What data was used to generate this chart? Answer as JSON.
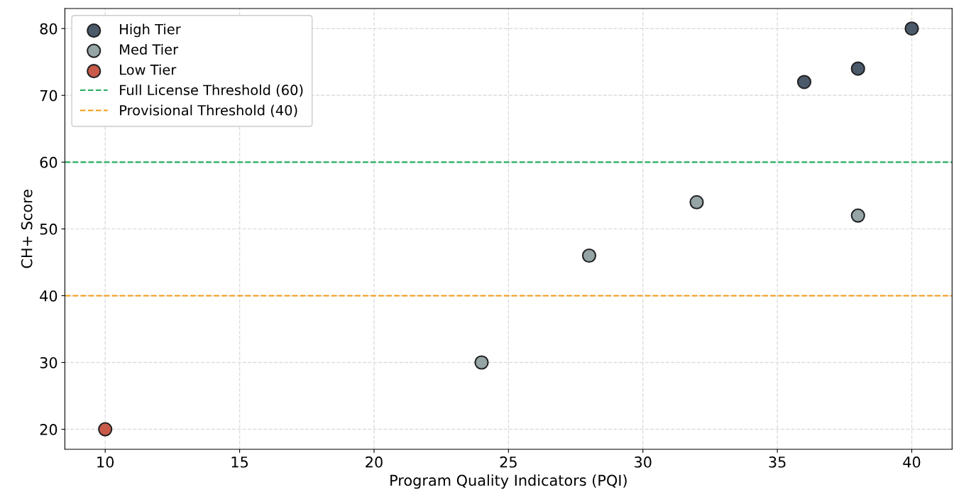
{
  "chart_data": {
    "type": "scatter",
    "xlabel": "Program Quality Indicators (PQI)",
    "ylabel": "CH+ Score",
    "series": [
      {
        "name": "High Tier",
        "color": "#4b5a6b",
        "x": [
          36,
          38,
          40
        ],
        "values": [
          72,
          74,
          80
        ]
      },
      {
        "name": "Med Tier",
        "color": "#95a5a6",
        "x": [
          24,
          28,
          32,
          38
        ],
        "values": [
          30,
          46,
          54,
          52
        ]
      },
      {
        "name": "Low Tier",
        "color": "#c95a4a",
        "x": [
          10
        ],
        "values": [
          20
        ]
      }
    ],
    "ref_lines": [
      {
        "axis": "y",
        "value": 60,
        "label": "Full License Threshold (60)",
        "color": "#27ae60",
        "line_style": "dashed"
      },
      {
        "axis": "y",
        "value": 40,
        "label": "Provisional Threshold (40)",
        "color": "#f39c12",
        "line_style": "dashed"
      }
    ],
    "xlim": [
      8.5,
      41.5
    ],
    "xticks": [
      10,
      15,
      20,
      25,
      30,
      35,
      40
    ],
    "ylim": [
      17,
      83
    ],
    "yticks": [
      20,
      30,
      40,
      50,
      60,
      70,
      80
    ],
    "grid": true,
    "legend": "top left",
    "marker": "circle"
  }
}
